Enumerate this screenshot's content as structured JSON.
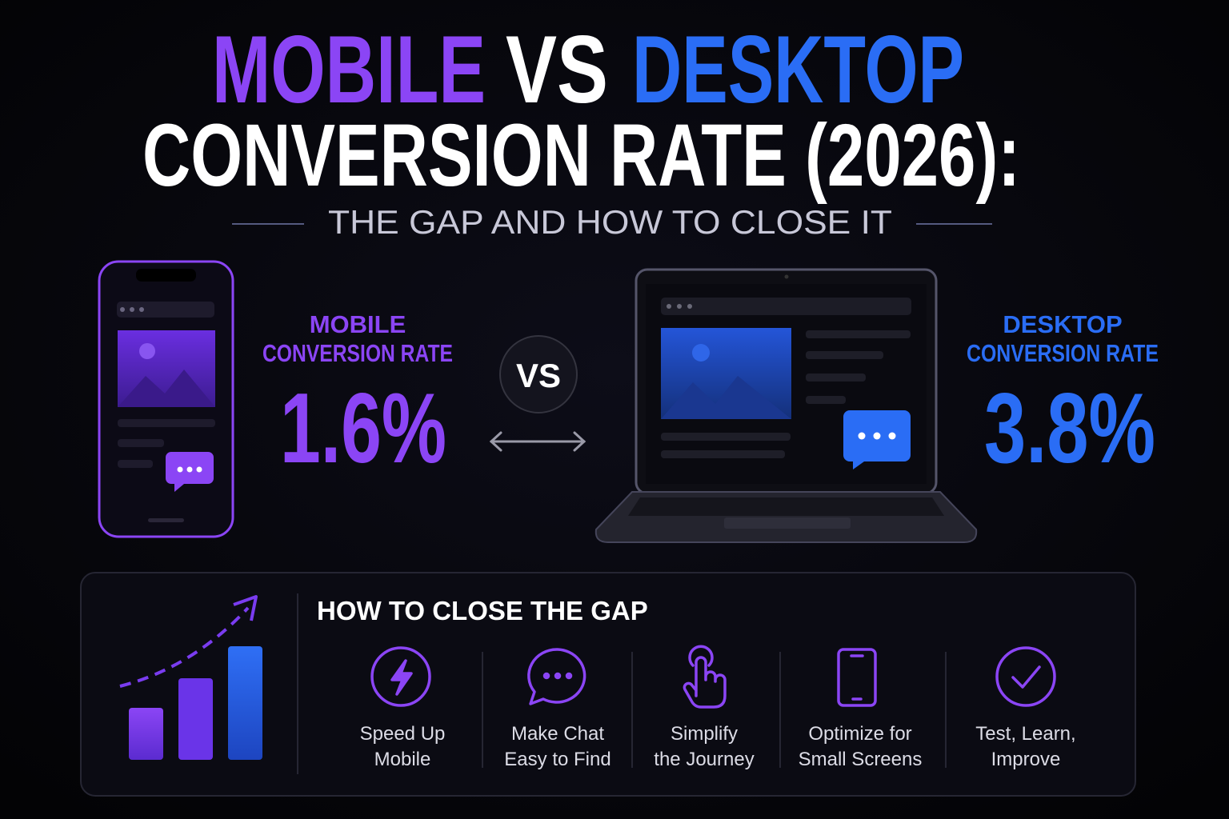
{
  "header": {
    "title_mobile": "MOBILE",
    "title_vs": "VS",
    "title_desktop": "DESKTOP",
    "title_line2": "CONVERSION RATE (2026):",
    "subtitle": "THE GAP AND HOW TO CLOSE IT"
  },
  "comparison": {
    "mobile": {
      "label": [
        "MOBILE",
        "CONVERSION RATE"
      ],
      "rate": "1.6%"
    },
    "vs": "VS",
    "desktop": {
      "label": [
        "DESKTOP",
        "CONVERSION RATE"
      ],
      "rate": "3.8%"
    }
  },
  "tips": {
    "heading": "HOW TO CLOSE THE GAP",
    "items": [
      {
        "lines": [
          "Speed Up",
          "Mobile"
        ]
      },
      {
        "lines": [
          "Make Chat",
          "Easy to Find"
        ]
      },
      {
        "lines": [
          "Simplify",
          "the Journey"
        ]
      },
      {
        "lines": [
          "Optimize for",
          "Small Screens"
        ]
      },
      {
        "lines": [
          "Test, Learn,",
          "Improve"
        ]
      }
    ]
  }
}
